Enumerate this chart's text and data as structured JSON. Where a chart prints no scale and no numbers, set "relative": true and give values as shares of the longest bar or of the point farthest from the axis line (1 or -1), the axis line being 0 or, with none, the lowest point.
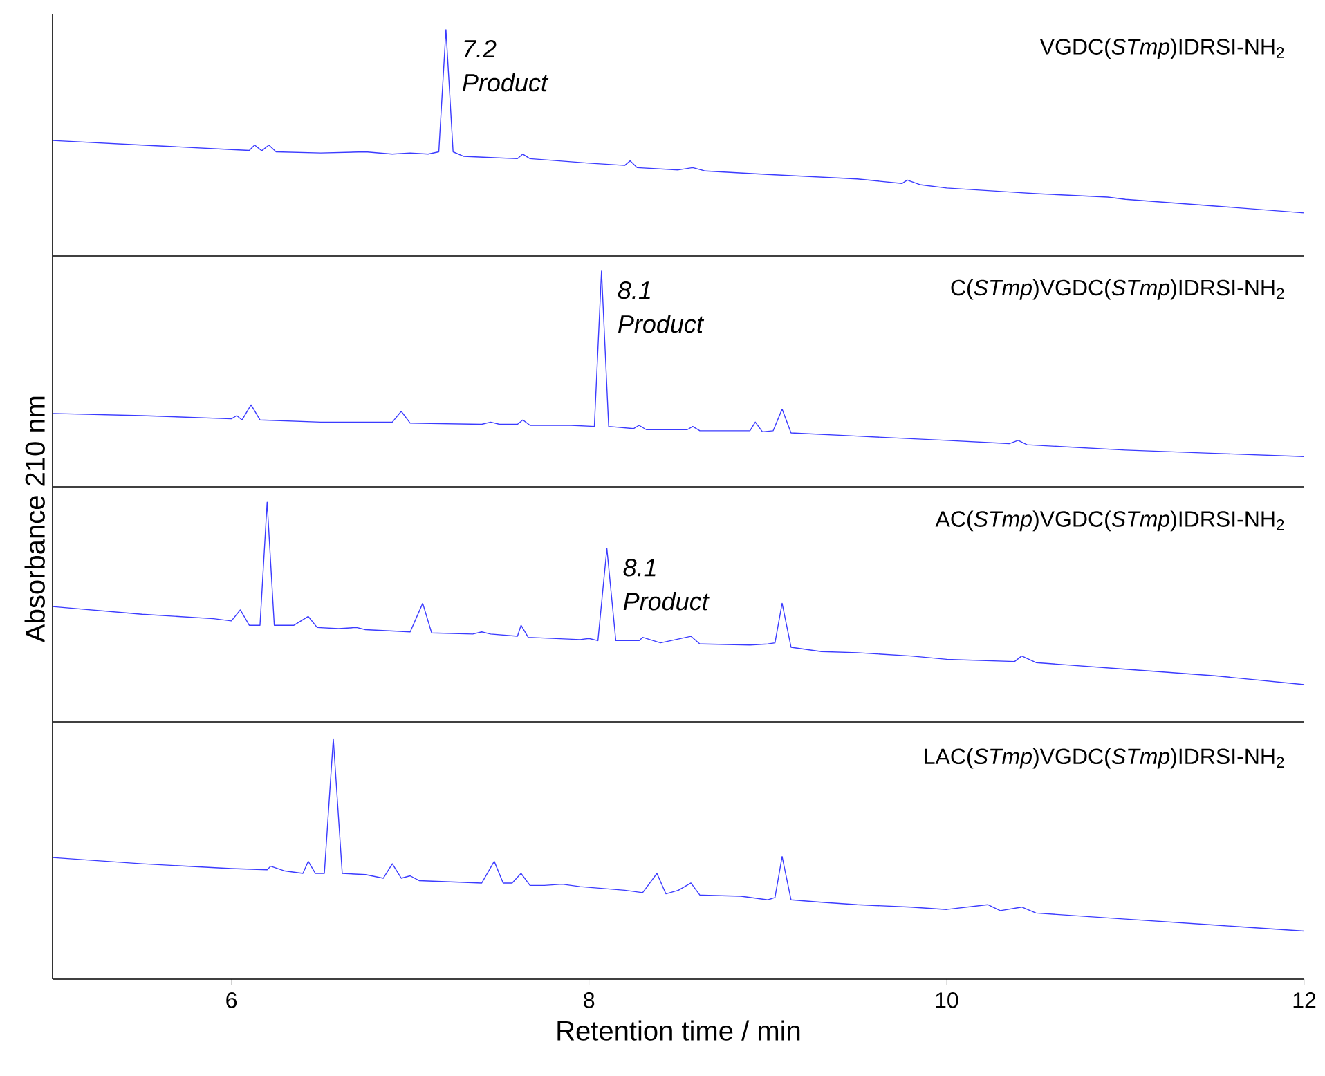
{
  "chart_data": [
    {
      "type": "line",
      "title": "VGDC(*STmp*)IDRSI-NH$_{2}$",
      "relative": true,
      "xlim": [
        5,
        12
      ],
      "tick_labels": false,
      "color": "#3b3bff",
      "annotations": [
        {
          "text": "7.2",
          "x": 7.2,
          "y": 1.0
        },
        {
          "text": "Product",
          "x": 7.2,
          "y": 1.0
        }
      ],
      "x": [
        5.0,
        5.5,
        6.0,
        6.1,
        6.13,
        6.17,
        6.21,
        6.25,
        6.5,
        6.75,
        6.9,
        7.0,
        7.1,
        7.16,
        7.2,
        7.24,
        7.3,
        7.45,
        7.6,
        7.63,
        7.67,
        8.0,
        8.2,
        8.23,
        8.27,
        8.5,
        8.58,
        8.65,
        9.0,
        9.5,
        9.75,
        9.78,
        9.85,
        10.0,
        10.4,
        10.5,
        10.9,
        11.0,
        11.5,
        12.0
      ],
      "values": [
        0.51,
        0.49,
        0.47,
        0.466,
        0.49,
        0.465,
        0.49,
        0.46,
        0.455,
        0.46,
        0.45,
        0.455,
        0.45,
        0.46,
        1.0,
        0.46,
        0.44,
        0.435,
        0.43,
        0.45,
        0.43,
        0.41,
        0.4,
        0.42,
        0.39,
        0.38,
        0.39,
        0.375,
        0.36,
        0.34,
        0.32,
        0.335,
        0.315,
        0.3,
        0.28,
        0.275,
        0.26,
        0.25,
        0.22,
        0.19
      ]
    },
    {
      "type": "line",
      "title": "C(*STmp*)VGDC(*STmp*)IDRSI-NH$_{2}$",
      "relative": true,
      "xlim": [
        5,
        12
      ],
      "tick_labels": false,
      "color": "#3b3bff",
      "annotations": [
        {
          "text": "8.1",
          "x": 8.07,
          "y": 1.0
        },
        {
          "text": "Product",
          "x": 8.07,
          "y": 1.0
        }
      ],
      "x": [
        5.0,
        5.5,
        6.0,
        6.03,
        6.06,
        6.11,
        6.16,
        6.5,
        6.9,
        6.95,
        7.0,
        7.4,
        7.45,
        7.5,
        7.6,
        7.63,
        7.67,
        7.9,
        8.03,
        8.07,
        8.11,
        8.25,
        8.28,
        8.32,
        8.55,
        8.58,
        8.62,
        8.9,
        8.93,
        8.97,
        9.03,
        9.08,
        9.13,
        9.5,
        10.0,
        10.35,
        10.4,
        10.45,
        11.0,
        11.5,
        12.0
      ],
      "values": [
        0.34,
        0.33,
        0.315,
        0.33,
        0.31,
        0.38,
        0.31,
        0.3,
        0.3,
        0.35,
        0.295,
        0.29,
        0.3,
        0.29,
        0.29,
        0.31,
        0.285,
        0.285,
        0.28,
        1.0,
        0.28,
        0.27,
        0.285,
        0.265,
        0.265,
        0.28,
        0.26,
        0.26,
        0.3,
        0.255,
        0.26,
        0.36,
        0.25,
        0.235,
        0.215,
        0.2,
        0.215,
        0.195,
        0.17,
        0.155,
        0.14
      ]
    },
    {
      "type": "line",
      "title": "AC(*STmp*)VGDC(*STmp*)IDRSI-NH$_{2}$",
      "ylabel": "Absorbance 210 nm",
      "relative": true,
      "xlim": [
        5,
        12
      ],
      "tick_labels": false,
      "color": "#3b3bff",
      "annotations": [
        {
          "text": "8.1",
          "x": 8.1,
          "y": 0.79
        },
        {
          "text": "Product",
          "x": 8.1,
          "y": 0.79
        }
      ],
      "x": [
        5.0,
        5.5,
        5.9,
        6.0,
        6.05,
        6.1,
        6.16,
        6.2,
        6.24,
        6.35,
        6.43,
        6.48,
        6.6,
        6.7,
        6.75,
        7.0,
        7.07,
        7.12,
        7.35,
        7.4,
        7.45,
        7.6,
        7.62,
        7.66,
        7.95,
        8.0,
        8.05,
        8.1,
        8.15,
        8.28,
        8.3,
        8.4,
        8.57,
        8.62,
        8.9,
        9.0,
        9.04,
        9.08,
        9.13,
        9.3,
        9.5,
        9.8,
        10.0,
        10.38,
        10.42,
        10.5,
        11.0,
        11.5,
        12.0
      ],
      "values": [
        0.525,
        0.49,
        0.47,
        0.46,
        0.51,
        0.44,
        0.44,
        1.0,
        0.44,
        0.44,
        0.48,
        0.43,
        0.425,
        0.43,
        0.42,
        0.41,
        0.54,
        0.405,
        0.4,
        0.41,
        0.4,
        0.39,
        0.44,
        0.385,
        0.375,
        0.38,
        0.37,
        0.79,
        0.37,
        0.37,
        0.385,
        0.36,
        0.39,
        0.355,
        0.35,
        0.355,
        0.36,
        0.54,
        0.34,
        0.32,
        0.315,
        0.3,
        0.285,
        0.275,
        0.3,
        0.27,
        0.24,
        0.21,
        0.17
      ]
    },
    {
      "type": "line",
      "title": "LAC(*STmp*)VGDC(*STmp*)IDRSI-NH$_{2}$",
      "xlabel": "Retention time / min",
      "relative": true,
      "xlim": [
        5,
        12
      ],
      "xticks": [
        6,
        8,
        10,
        12
      ],
      "tick_labels": "x",
      "color": "#3b3bff",
      "x": [
        5.0,
        5.5,
        6.0,
        6.2,
        6.22,
        6.3,
        6.4,
        6.43,
        6.47,
        6.52,
        6.57,
        6.62,
        6.75,
        6.85,
        6.9,
        6.95,
        7.0,
        7.05,
        7.4,
        7.47,
        7.52,
        7.57,
        7.62,
        7.67,
        7.75,
        7.85,
        7.95,
        8.2,
        8.3,
        8.38,
        8.43,
        8.5,
        8.57,
        8.62,
        8.85,
        9.0,
        9.04,
        9.08,
        9.13,
        9.3,
        9.5,
        9.8,
        10.0,
        10.23,
        10.3,
        10.42,
        10.5,
        11.0,
        11.5,
        12.0
      ],
      "values": [
        0.506,
        0.48,
        0.46,
        0.455,
        0.47,
        0.45,
        0.44,
        0.49,
        0.44,
        0.44,
        1.0,
        0.44,
        0.435,
        0.42,
        0.48,
        0.42,
        0.43,
        0.41,
        0.4,
        0.49,
        0.4,
        0.4,
        0.44,
        0.39,
        0.39,
        0.395,
        0.385,
        0.37,
        0.36,
        0.44,
        0.355,
        0.37,
        0.4,
        0.35,
        0.345,
        0.33,
        0.34,
        0.51,
        0.33,
        0.32,
        0.31,
        0.3,
        0.29,
        0.31,
        0.285,
        0.3,
        0.275,
        0.25,
        0.225,
        0.2
      ]
    }
  ]
}
